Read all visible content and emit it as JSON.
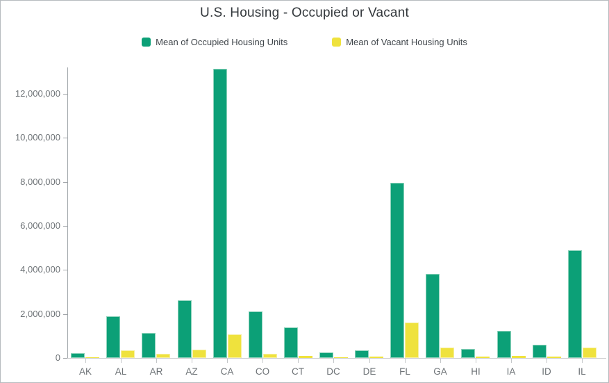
{
  "title": "U.S. Housing - Occupied or Vacant",
  "legend": {
    "items": [
      {
        "label": "Mean of Occupied Housing Units",
        "color": "#0ca077",
        "border": "#8ed2bb"
      },
      {
        "label": "Mean of Vacant Housing Units",
        "color": "#efe23d",
        "border": "#f6efa0"
      }
    ]
  },
  "chart_data": {
    "type": "bar",
    "title": "U.S. Housing - Occupied or Vacant",
    "categories": [
      "AK",
      "AL",
      "AR",
      "AZ",
      "CA",
      "CO",
      "CT",
      "DC",
      "DE",
      "FL",
      "GA",
      "HI",
      "IA",
      "ID",
      "IL"
    ],
    "series": [
      {
        "name": "Mean of Occupied Housing Units",
        "color": "#0ca077",
        "border": "#8ed2bb",
        "values": [
          220000,
          1900000,
          1140000,
          2610000,
          13150000,
          2100000,
          1380000,
          260000,
          350000,
          7950000,
          3830000,
          420000,
          1240000,
          610000,
          4900000
        ]
      },
      {
        "name": "Mean of Vacant Housing Units",
        "color": "#efe23d",
        "border": "#f6efa0",
        "values": [
          40000,
          350000,
          190000,
          370000,
          1080000,
          190000,
          100000,
          30000,
          50000,
          1600000,
          460000,
          60000,
          100000,
          70000,
          460000
        ]
      }
    ],
    "xlabel": "",
    "ylabel": "",
    "ylim": [
      0,
      13200000
    ],
    "yticks": [
      0,
      2000000,
      4000000,
      6000000,
      8000000,
      10000000,
      12000000
    ],
    "ytick_labels": [
      "0",
      "2,000,000",
      "4,000,000",
      "6,000,000",
      "8,000,000",
      "10,000,000",
      "12,000,000"
    ],
    "grid": false,
    "legend_position": "top"
  },
  "style": {
    "title_color": "#33383c",
    "axis_text_color": "#6e7377",
    "y_axis_line_color": "#9ea3a7",
    "x_axis_line_color": "#cdced0",
    "frame_border_color": "#b6bbbf",
    "background": "#ffffff"
  }
}
